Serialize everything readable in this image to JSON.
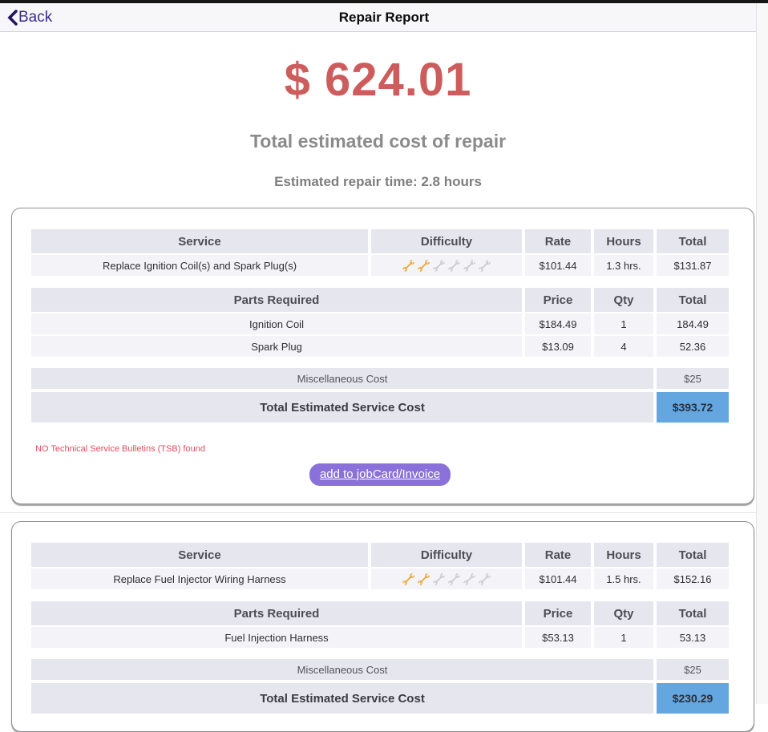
{
  "header": {
    "back_label": "Back",
    "title": "Repair Report"
  },
  "summary": {
    "total_cost": "$ 624.01",
    "total_cost_caption": "Total estimated cost of repair",
    "repair_time": "Estimated repair time: 2.8 hours"
  },
  "service_table_headers": {
    "service": "Service",
    "difficulty": "Difficulty",
    "rate": "Rate",
    "hours": "Hours",
    "total": "Total"
  },
  "parts_table_headers": {
    "parts": "Parts Required",
    "price": "Price",
    "qty": "Qty",
    "total": "Total"
  },
  "labels": {
    "misc_cost": "Miscellaneous Cost",
    "total_service_cost": "Total Estimated Service Cost"
  },
  "cards": [
    {
      "service": {
        "name": "Replace Ignition Coil(s) and Spark Plug(s)",
        "difficulty": 2,
        "difficulty_max": 6,
        "rate": "$101.44",
        "hours": "1.3 hrs.",
        "total": "$131.87"
      },
      "parts": [
        {
          "name": "Ignition Coil",
          "price": "$184.49",
          "qty": "1",
          "total": "184.49"
        },
        {
          "name": "Spark Plug",
          "price": "$13.09",
          "qty": "4",
          "total": "52.36"
        }
      ],
      "misc_cost": "$25",
      "total_service_cost": "$393.72",
      "tsb_note": "NO Technical Service Bulletins (TSB) found",
      "action_label": "add to jobCard/Invoice"
    },
    {
      "service": {
        "name": "Replace Fuel Injector Wiring Harness",
        "difficulty": 2,
        "difficulty_max": 6,
        "rate": "$101.44",
        "hours": "1.5 hrs.",
        "total": "$152.16"
      },
      "parts": [
        {
          "name": "Fuel Injection Harness",
          "price": "$53.13",
          "qty": "1",
          "total": "53.13"
        }
      ],
      "misc_cost": "$25",
      "total_service_cost": "$230.29"
    }
  ],
  "colors": {
    "accent_price": "#cd5c5c",
    "header_cell_bg": "#e6e6ee",
    "row_bg": "#f4f4f8",
    "total_highlight": "#64a6e0",
    "button_purple": "#8a71d9",
    "back_link_purple": "#3b2d8f",
    "tsb_red": "#dd4f5f",
    "wrench_active": "#f0a335",
    "wrench_inactive": "#c9c9cf"
  }
}
